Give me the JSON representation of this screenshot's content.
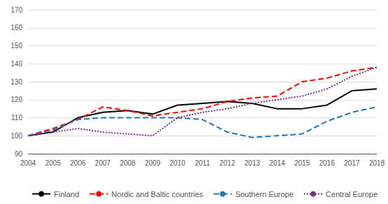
{
  "chart_data": {
    "type": "line",
    "categories": [
      2004,
      2005,
      2006,
      2007,
      2008,
      2009,
      2010,
      2011,
      2012,
      2013,
      2014,
      2015,
      2016,
      2017,
      2018
    ],
    "series": [
      {
        "name": "Finland",
        "color": "#000000",
        "line_style": "solid",
        "values": [
          100,
          102,
          110,
          113,
          114,
          112,
          117,
          118,
          119,
          118,
          115,
          115,
          117,
          125,
          126
        ]
      },
      {
        "name": "Nordic and Baltic countries",
        "color": "#ff0000",
        "line_style": "dashed",
        "values": [
          100,
          104,
          109,
          116,
          114,
          111,
          113,
          115,
          119,
          121,
          122,
          130,
          132,
          136,
          138
        ]
      },
      {
        "name": "Southern Europe",
        "color": "#1f78b4",
        "line_style": "dashed",
        "values": [
          100,
          103,
          109,
          110,
          110,
          110,
          110,
          109,
          102,
          99,
          100,
          101,
          108,
          113,
          116
        ]
      },
      {
        "name": "Central Europe",
        "color": "#7b2d8b",
        "line_style": "dotted",
        "values": [
          100,
          102,
          104,
          102,
          101,
          100,
          110,
          113,
          115,
          118,
          120,
          122,
          126,
          133,
          138
        ]
      }
    ],
    "ylim": [
      90,
      170
    ],
    "yticks": [
      90,
      100,
      110,
      120,
      130,
      140,
      150,
      160,
      170
    ],
    "grid": true,
    "legend": "bottom"
  }
}
